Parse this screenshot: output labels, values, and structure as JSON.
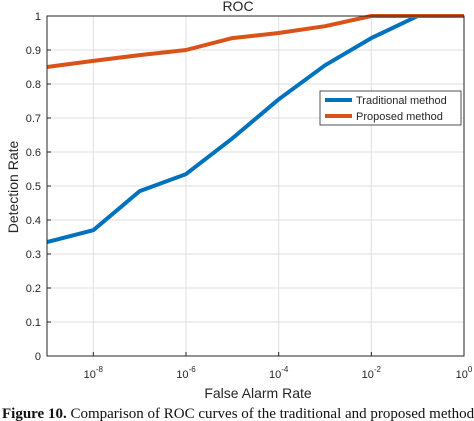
{
  "chart_data": {
    "type": "line",
    "title": "ROC",
    "xlabel": "False Alarm Rate",
    "ylabel": "Detection Rate",
    "x_scale": "log",
    "xlim": [
      1e-09,
      1
    ],
    "ylim": [
      0,
      1
    ],
    "grid": true,
    "legend_position": "top-right",
    "x_ticks": [
      {
        "value": 1e-08,
        "base": "10",
        "exp": "-8"
      },
      {
        "value": 1e-06,
        "base": "10",
        "exp": "-6"
      },
      {
        "value": 0.0001,
        "base": "10",
        "exp": "-4"
      },
      {
        "value": 0.01,
        "base": "10",
        "exp": "-2"
      },
      {
        "value": 1,
        "base": "10",
        "exp": "0"
      }
    ],
    "y_ticks": [
      "0",
      "0.1",
      "0.2",
      "0.3",
      "0.4",
      "0.5",
      "0.6",
      "0.7",
      "0.8",
      "0.9",
      "1"
    ],
    "series": [
      {
        "name": "Traditional method",
        "color": "#0072BD",
        "points": [
          {
            "x": 1e-09,
            "y": 0.335
          },
          {
            "x": 1e-08,
            "y": 0.37
          },
          {
            "x": 1e-07,
            "y": 0.485
          },
          {
            "x": 1e-06,
            "y": 0.535
          },
          {
            "x": 1e-05,
            "y": 0.64
          },
          {
            "x": 0.0001,
            "y": 0.755
          },
          {
            "x": 0.001,
            "y": 0.855
          },
          {
            "x": 0.01,
            "y": 0.935
          },
          {
            "x": 0.1,
            "y": 1.0
          },
          {
            "x": 1,
            "y": 1.0
          }
        ]
      },
      {
        "name": "Proposed method",
        "color": "#D95319",
        "points": [
          {
            "x": 1e-09,
            "y": 0.85
          },
          {
            "x": 1e-08,
            "y": 0.868
          },
          {
            "x": 1e-07,
            "y": 0.885
          },
          {
            "x": 1e-06,
            "y": 0.9
          },
          {
            "x": 1e-05,
            "y": 0.935
          },
          {
            "x": 0.0001,
            "y": 0.95
          },
          {
            "x": 0.001,
            "y": 0.97
          },
          {
            "x": 0.01,
            "y": 1.0
          },
          {
            "x": 0.1,
            "y": 1.0
          },
          {
            "x": 1,
            "y": 1.0
          }
        ]
      }
    ]
  },
  "caption": {
    "label": "Figure 10.",
    "text": " Comparison of ROC curves of the traditional and proposed methods"
  }
}
